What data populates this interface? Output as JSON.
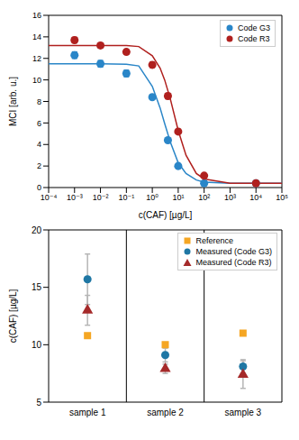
{
  "chart_data": [
    {
      "type": "scatter",
      "log": "x",
      "legend": "upper right",
      "x_label": "c(CAF) [µg/L]",
      "y_label": "MCI [arb. u.]",
      "xlim": [
        0.0001,
        100000
      ],
      "xticks": [
        {
          "value": 0.0001,
          "label": "10⁻⁴"
        },
        {
          "value": 0.001,
          "label": "10⁻³"
        },
        {
          "value": 0.01,
          "label": "10⁻²"
        },
        {
          "value": 0.1,
          "label": "10⁻¹"
        },
        {
          "value": 1,
          "label": "10⁰"
        },
        {
          "value": 10,
          "label": "10¹"
        },
        {
          "value": 100,
          "label": "10²"
        },
        {
          "value": 1000,
          "label": "10³"
        },
        {
          "value": 10000,
          "label": "10⁴"
        },
        {
          "value": 100000,
          "label": "10⁵"
        }
      ],
      "ylim": [
        0,
        16
      ],
      "yticks": [
        0,
        2,
        4,
        6,
        8,
        10,
        12,
        14,
        16
      ],
      "series": [
        {
          "name": "Code G3",
          "color": "#2a86c8",
          "marker": "circle",
          "x": [
            0.001,
            0.01,
            0.1,
            1,
            4,
            10,
            100,
            10000
          ],
          "values": [
            12.3,
            11.5,
            10.6,
            8.4,
            4.4,
            2.0,
            0.4,
            0.4
          ],
          "errors": [
            0.3,
            0.3,
            0.3,
            0.2,
            0.1,
            0.1,
            0.1,
            0.1
          ],
          "fit": {
            "x": [
              0.0001,
              0.001,
              0.01,
              0.1,
              0.3,
              1,
              2,
              3,
              5,
              10,
              20,
              50,
              100,
              1000,
              100000
            ],
            "values": [
              11.5,
              11.5,
              11.5,
              11.45,
              11.3,
              9.4,
              7.4,
              5.95,
              4.2,
              2.3,
              1.3,
              0.7,
              0.5,
              0.4,
              0.4
            ]
          }
        },
        {
          "name": "Code R3",
          "color": "#b0201e",
          "marker": "circle",
          "x": [
            0.001,
            0.01,
            0.1,
            1,
            4,
            10,
            100,
            10000
          ],
          "values": [
            13.7,
            13.2,
            12.6,
            11.4,
            8.5,
            5.2,
            1.1,
            0.4
          ],
          "errors": [
            0.25,
            0.2,
            0.2,
            0.25,
            0.25,
            0.2,
            0.1,
            0.1
          ],
          "fit": {
            "x": [
              0.0001,
              0.001,
              0.01,
              0.1,
              0.3,
              1,
              2,
              3,
              5,
              10,
              20,
              50,
              100,
              1000,
              100000
            ],
            "values": [
              13.2,
              13.2,
              13.2,
              13.2,
              13.1,
              12.25,
              11.1,
              10.0,
              8.2,
              5.3,
              3.0,
              1.3,
              0.8,
              0.4,
              0.4
            ]
          }
        }
      ]
    },
    {
      "type": "scatter",
      "legend": "upper right",
      "y_label": "c(CAF) [µg/L]",
      "categories": [
        "sample 1",
        "sample 2",
        "sample 3"
      ],
      "ylim": [
        5,
        20
      ],
      "yticks": [
        5,
        10,
        15,
        20
      ],
      "series": [
        {
          "name": "Reference",
          "color": "#f5a623",
          "marker": "square",
          "values": [
            10.8,
            10.0,
            11.0
          ]
        },
        {
          "name": "Measured (Code G3)",
          "color": "#1f77a4",
          "marker": "circle",
          "values": [
            15.7,
            9.1,
            8.1
          ],
          "errors": [
            2.2,
            0.6,
            0.6
          ]
        },
        {
          "name": "Measured (Code R3)",
          "color": "#a52a2a",
          "marker": "triangle",
          "values": [
            13.0,
            7.9,
            7.4
          ],
          "errors": [
            1.3,
            0.4,
            1.2
          ]
        }
      ]
    }
  ]
}
